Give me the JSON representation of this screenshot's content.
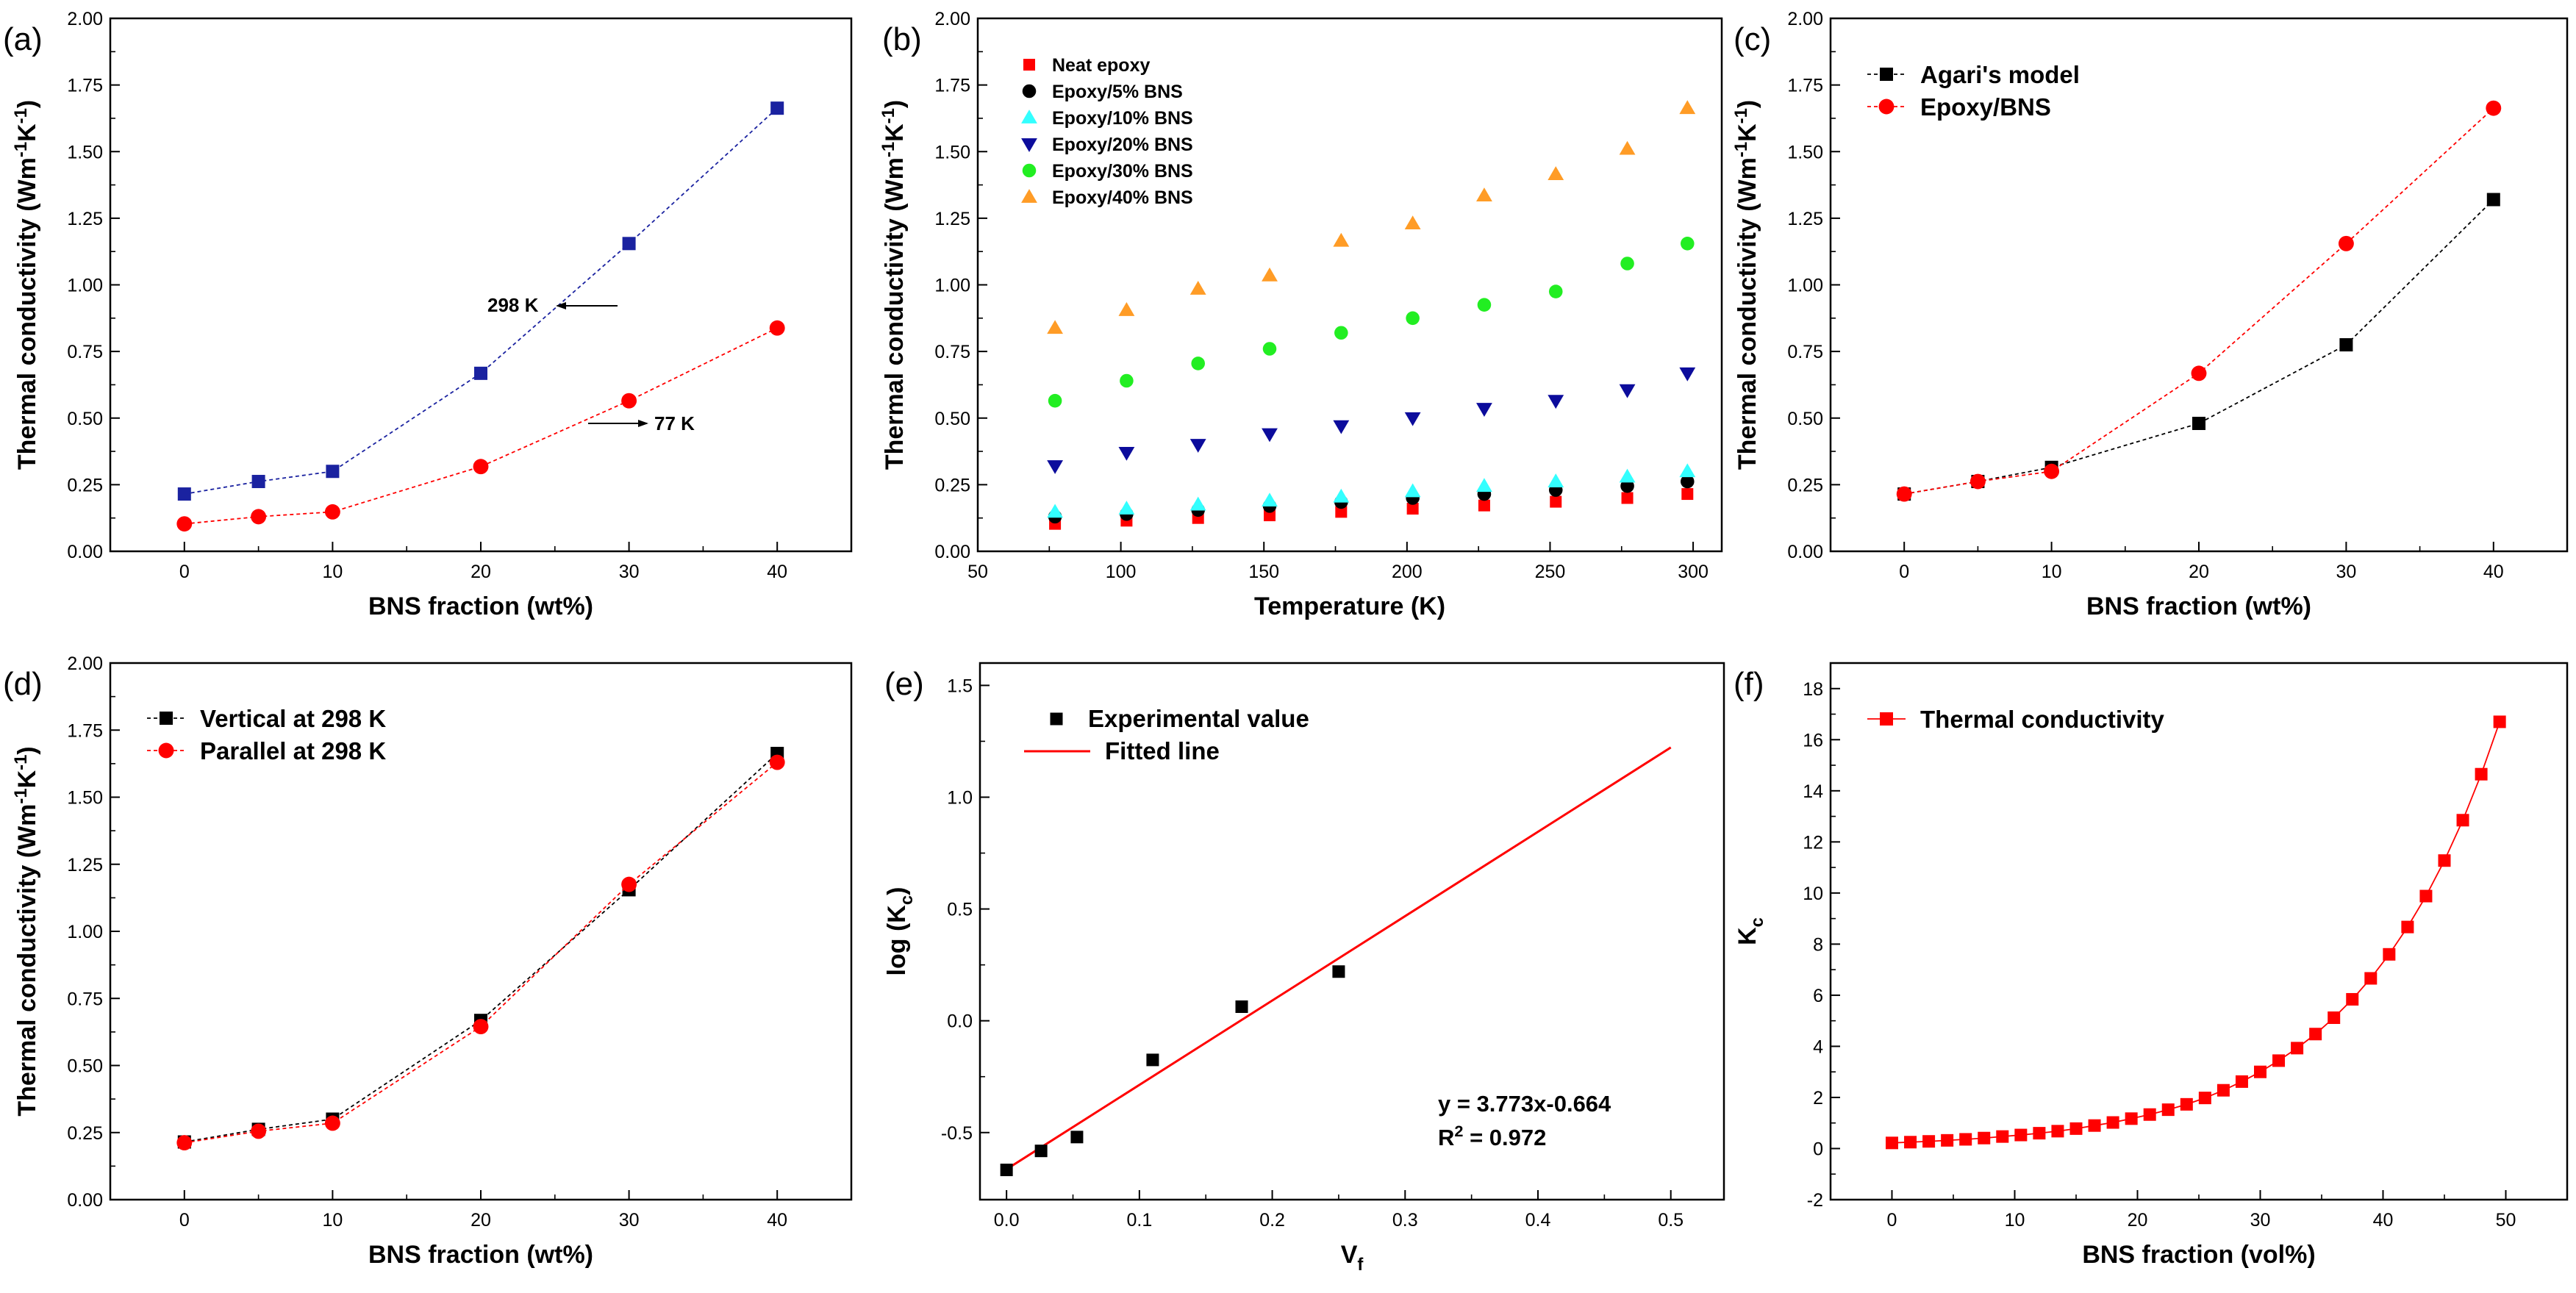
{
  "colors": {
    "navy": "#1a22a0",
    "red": "#ff0000",
    "black": "#000000",
    "cyan": "#33ffff",
    "blue": "#0c0c9c",
    "green": "#22ee22",
    "orange": "#ff9c26"
  },
  "chart_data": [
    {
      "id": "a",
      "type": "line",
      "panel_label": "(a)",
      "xlabel": "BNS fraction (wt%)",
      "ylabel": "Thermal conductivity (Wm-1K-1)",
      "xlim": [
        -5,
        45
      ],
      "ylim": [
        0,
        2.0
      ],
      "xticks": [
        0,
        10,
        20,
        30,
        40
      ],
      "yticks": [
        "0.00",
        "0.25",
        "0.50",
        "0.75",
        "1.00",
        "1.25",
        "1.50",
        "1.75",
        "2.00"
      ],
      "x": [
        0,
        5,
        10,
        20,
        30,
        40
      ],
      "series": [
        {
          "name": "298 K",
          "marker": "square",
          "color": "#1a22a0",
          "values": [
            0.215,
            0.262,
            0.3,
            0.668,
            1.155,
            1.663
          ]
        },
        {
          "name": "77 K",
          "marker": "circle",
          "color": "#ff0000",
          "values": [
            0.103,
            0.13,
            0.148,
            0.318,
            0.565,
            0.838
          ]
        }
      ],
      "annotations": [
        "298 K",
        "77 K"
      ]
    },
    {
      "id": "b",
      "type": "scatter",
      "panel_label": "(b)",
      "xlabel": "Temperature (K)",
      "ylabel": "Thermal conductivity (Wm-1K-1)",
      "xlim": [
        50,
        310
      ],
      "ylim": [
        0,
        2.0
      ],
      "xticks": [
        50,
        100,
        150,
        200,
        250,
        300
      ],
      "yticks": [
        "0.00",
        "0.25",
        "0.50",
        "0.75",
        "1.00",
        "1.25",
        "1.50",
        "1.75",
        "2.00"
      ],
      "legend_position": "top-left",
      "x": [
        77,
        102,
        127,
        152,
        177,
        202,
        227,
        252,
        277,
        298
      ],
      "series": [
        {
          "name": "Neat epoxy",
          "marker": "square",
          "color": "#ff0000",
          "values": [
            0.103,
            0.115,
            0.125,
            0.135,
            0.148,
            0.16,
            0.172,
            0.186,
            0.2,
            0.215
          ]
        },
        {
          "name": "Epoxy/5% BNS",
          "marker": "circle",
          "color": "#000000",
          "values": [
            0.13,
            0.14,
            0.155,
            0.17,
            0.185,
            0.2,
            0.215,
            0.23,
            0.245,
            0.262
          ]
        },
        {
          "name": "Epoxy/10% BNS",
          "marker": "triangle-up",
          "color": "#33ffff",
          "values": [
            0.148,
            0.16,
            0.175,
            0.19,
            0.205,
            0.225,
            0.245,
            0.262,
            0.28,
            0.3
          ]
        },
        {
          "name": "Epoxy/20% BNS",
          "marker": "triangle-down",
          "color": "#0c0c9c",
          "values": [
            0.32,
            0.37,
            0.4,
            0.44,
            0.47,
            0.5,
            0.535,
            0.565,
            0.605,
            0.668
          ]
        },
        {
          "name": "Epoxy/30% BNS",
          "marker": "circle",
          "color": "#22ee22",
          "values": [
            0.565,
            0.64,
            0.705,
            0.76,
            0.82,
            0.875,
            0.925,
            0.975,
            1.08,
            1.155
          ]
        },
        {
          "name": "Epoxy/40% BNS",
          "marker": "triangle-up",
          "color": "#ff9c26",
          "values": [
            0.838,
            0.905,
            0.985,
            1.035,
            1.165,
            1.23,
            1.335,
            1.415,
            1.51,
            1.663
          ]
        }
      ]
    },
    {
      "id": "c",
      "type": "line",
      "panel_label": "(c)",
      "xlabel": "BNS fraction (wt%)",
      "ylabel": "Thermal conductivity (Wm-1K-1)",
      "xlim": [
        -5,
        45
      ],
      "ylim": [
        0,
        2.0
      ],
      "xticks": [
        0,
        10,
        20,
        30,
        40
      ],
      "yticks": [
        "0.00",
        "0.25",
        "0.50",
        "0.75",
        "1.00",
        "1.25",
        "1.50",
        "1.75",
        "2.00"
      ],
      "legend_position": "top-left",
      "x": [
        0,
        5,
        10,
        20,
        30,
        40
      ],
      "series": [
        {
          "name": "Agari's model",
          "marker": "square",
          "color": "#000000",
          "values": [
            0.215,
            0.262,
            0.315,
            0.48,
            0.775,
            1.32
          ]
        },
        {
          "name": "Epoxy/BNS",
          "marker": "circle",
          "color": "#ff0000",
          "values": [
            0.215,
            0.262,
            0.3,
            0.668,
            1.155,
            1.663
          ]
        }
      ]
    },
    {
      "id": "d",
      "type": "line",
      "panel_label": "(d)",
      "xlabel": "BNS fraction (wt%)",
      "ylabel": "Thermal conductivity (Wm-1K-1)",
      "xlim": [
        -5,
        45
      ],
      "ylim": [
        0,
        2.0
      ],
      "xticks": [
        0,
        10,
        20,
        30,
        40
      ],
      "yticks": [
        "0.00",
        "0.25",
        "0.50",
        "0.75",
        "1.00",
        "1.25",
        "1.50",
        "1.75",
        "2.00"
      ],
      "legend_position": "top-left",
      "x": [
        0,
        5,
        10,
        20,
        30,
        40
      ],
      "series": [
        {
          "name": "Vertical at 298 K",
          "marker": "square",
          "color": "#000000",
          "values": [
            0.215,
            0.262,
            0.3,
            0.668,
            1.155,
            1.663
          ]
        },
        {
          "name": "Parallel at 298 K",
          "marker": "circle",
          "color": "#ff0000",
          "values": [
            0.212,
            0.255,
            0.285,
            0.645,
            1.175,
            1.63
          ]
        }
      ]
    },
    {
      "id": "e",
      "type": "scatter",
      "panel_label": "(e)",
      "xlabel": "Vf",
      "ylabel": "log (Kc)",
      "xlim": [
        -0.02,
        0.54
      ],
      "ylim": [
        -0.8,
        1.6
      ],
      "xticks": [
        "0.0",
        "0.1",
        "0.2",
        "0.3",
        "0.4",
        "0.5"
      ],
      "yticks": [
        "-0.5",
        "0.0",
        "0.5",
        "1.0",
        "1.5"
      ],
      "legend_position": "top-left",
      "series": [
        {
          "name": "Experimental value",
          "marker": "square",
          "color": "#000000",
          "x": [
            0.0,
            0.026,
            0.053,
            0.11,
            0.177,
            0.25
          ],
          "values": [
            -0.667,
            -0.582,
            -0.52,
            -0.175,
            0.063,
            0.22
          ]
        }
      ],
      "fit": {
        "name": "Fitted line",
        "color": "#ff0000",
        "slope": 3.773,
        "intercept": -0.664,
        "x_range": [
          0,
          0.5
        ]
      },
      "equation": "y = 3.773x-0.664",
      "r2": "R2 = 0.972"
    },
    {
      "id": "f",
      "type": "line",
      "panel_label": "(f)",
      "xlabel": "BNS fraction (vol%)",
      "ylabel": "Kc",
      "xlim": [
        -5,
        55
      ],
      "ylim": [
        -2,
        19
      ],
      "xticks": [
        0,
        10,
        20,
        30,
        40,
        50
      ],
      "yticks": [
        "-2",
        "0",
        "2",
        "4",
        "6",
        "8",
        "10",
        "12",
        "14",
        "16",
        "18"
      ],
      "legend_position": "top-left",
      "series": [
        {
          "name": "Thermal conductivity",
          "marker": "square",
          "color": "#ff0000",
          "x": [
            0,
            1.5,
            3,
            4.5,
            6,
            7.5,
            9,
            10.5,
            12,
            13.5,
            15,
            16.5,
            18,
            19.5,
            21,
            22.5,
            24,
            25.5,
            27,
            28.5,
            30,
            31.5,
            33,
            34.5,
            36,
            37.5,
            39,
            40.5,
            42,
            43.5,
            45,
            46.5,
            48,
            49.5
          ],
          "values": [
            0.22,
            0.25,
            0.28,
            0.32,
            0.36,
            0.41,
            0.47,
            0.53,
            0.6,
            0.68,
            0.78,
            0.9,
            1.02,
            1.17,
            1.33,
            1.52,
            1.73,
            1.98,
            2.28,
            2.62,
            3.0,
            3.44,
            3.93,
            4.48,
            5.12,
            5.84,
            6.66,
            7.6,
            8.67,
            9.88,
            11.27,
            12.85,
            14.65,
            16.7
          ]
        }
      ]
    }
  ]
}
